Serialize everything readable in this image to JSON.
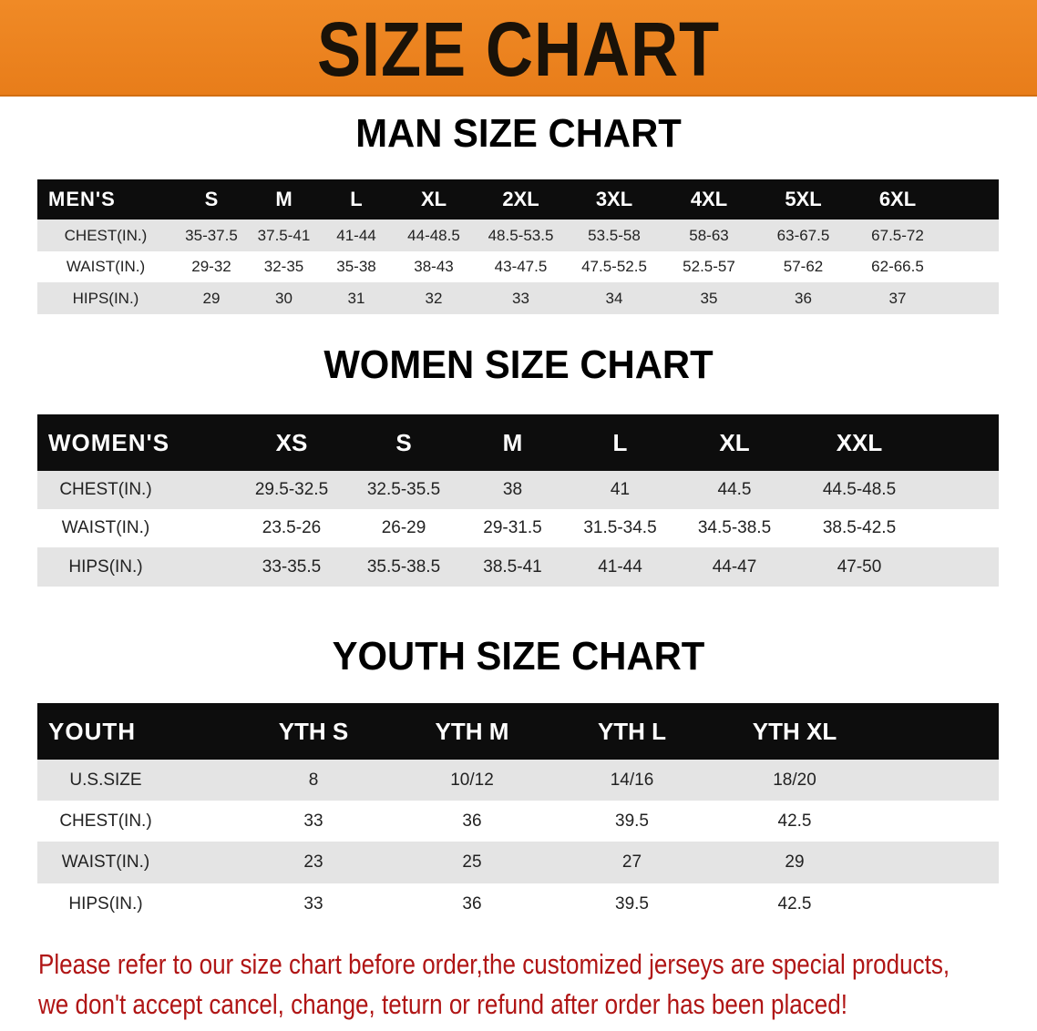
{
  "banner": {
    "title": "SIZE CHART"
  },
  "men": {
    "title": "MAN SIZE CHART",
    "header": [
      "MEN'S",
      "S",
      "M",
      "L",
      "XL",
      "2XL",
      "3XL",
      "4XL",
      "5XL",
      "6XL"
    ],
    "rows": [
      [
        "CHEST(IN.)",
        "35-37.5",
        "37.5-41",
        "41-44",
        "44-48.5",
        "48.5-53.5",
        "53.5-58",
        "58-63",
        "63-67.5",
        "67.5-72"
      ],
      [
        "WAIST(IN.)",
        "29-32",
        "32-35",
        "35-38",
        "38-43",
        "43-47.5",
        "47.5-52.5",
        "52.5-57",
        "57-62",
        "62-66.5"
      ],
      [
        "HIPS(IN.)",
        "29",
        "30",
        "31",
        "32",
        "33",
        "34",
        "35",
        "36",
        "37"
      ]
    ]
  },
  "women": {
    "title": "WOMEN SIZE CHART",
    "header": [
      "WOMEN'S",
      "XS",
      "S",
      "M",
      "L",
      "XL",
      "XXL"
    ],
    "rows": [
      [
        "CHEST(IN.)",
        "29.5-32.5",
        "32.5-35.5",
        "38",
        "41",
        "44.5",
        "44.5-48.5"
      ],
      [
        "WAIST(IN.)",
        "23.5-26",
        "26-29",
        "29-31.5",
        "31.5-34.5",
        "34.5-38.5",
        "38.5-42.5"
      ],
      [
        "HIPS(IN.)",
        "33-35.5",
        "35.5-38.5",
        "38.5-41",
        "41-44",
        "44-47",
        "47-50"
      ]
    ]
  },
  "youth": {
    "title": "YOUTH SIZE CHART",
    "header": [
      "YOUTH",
      "YTH S",
      "YTH M",
      "YTH L",
      "YTH XL"
    ],
    "rows": [
      [
        "U.S.SIZE",
        "8",
        "10/12",
        "14/16",
        "18/20"
      ],
      [
        "CHEST(IN.)",
        "33",
        "36",
        "39.5",
        "42.5"
      ],
      [
        "WAIST(IN.)",
        "23",
        "25",
        "27",
        "29"
      ],
      [
        "HIPS(IN.)",
        "33",
        "36",
        "39.5",
        "42.5"
      ]
    ]
  },
  "notice": {
    "line1": "Please refer to our size chart before order,the customized jerseys are special products,",
    "line2": "we don't accept cancel, change, teturn or refund after order has been placed!"
  },
  "colors": {
    "banner": "#e87d1a",
    "header_row": "#0d0d0d",
    "stripe": "#e4e4e4",
    "notice": "#b01515"
  }
}
